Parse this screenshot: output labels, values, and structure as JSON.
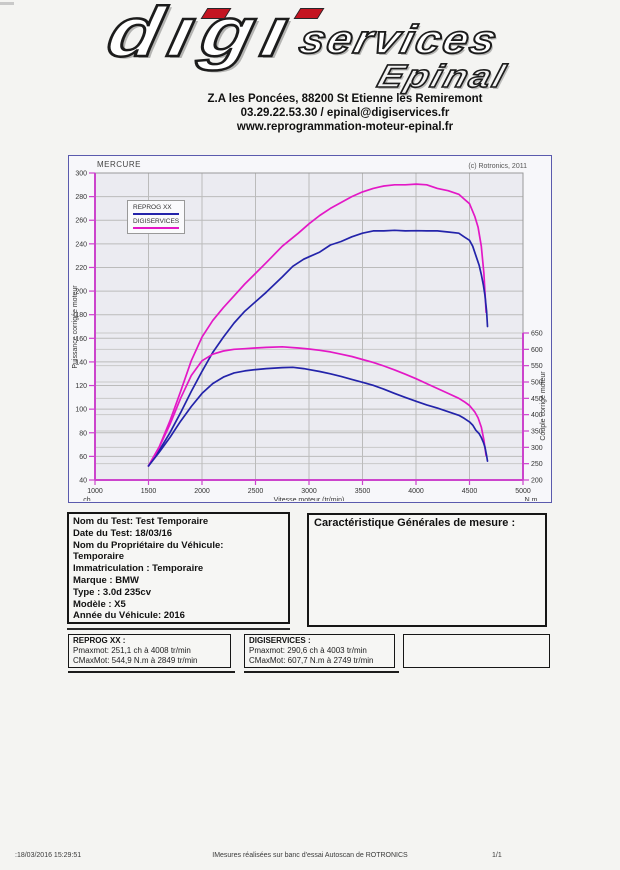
{
  "header": {
    "logo": {
      "word1": "digi",
      "word2": "services",
      "word3": "Epinal"
    },
    "address_lines": [
      "Z.A les Poncées, 88200 St Etienne les Remiremont",
      "03.29.22.53.30 / epinal@digiservices.fr",
      "www.reprogrammation-moteur-epinal.fr"
    ]
  },
  "chart_data": {
    "type": "line",
    "title": "MERCURE",
    "copyright": "(c) Rotronics, 2011",
    "xlabel": "Vitesse moteur (tr/min)",
    "x_corner_left_unit": "ch",
    "x_corner_right_unit": "N.m",
    "ylabel_left": "Puissance corrigée moteur",
    "ylabel_right": "Couple corrigé moteur",
    "xlim": [
      1000,
      5000
    ],
    "ylim_left": [
      40,
      300
    ],
    "ylim_right": [
      200,
      650
    ],
    "x_ticks": [
      1000,
      1500,
      2000,
      2500,
      3000,
      3500,
      4000,
      4500,
      5000
    ],
    "left_ticks": [
      40,
      60,
      80,
      100,
      120,
      140,
      160,
      180,
      200,
      220,
      240,
      260,
      280,
      300
    ],
    "right_ticks": [
      200,
      250,
      300,
      350,
      400,
      450,
      500,
      550,
      600,
      650
    ],
    "grid": true,
    "legend_position": "upper-left",
    "legend": [
      {
        "label": "REPROG XX",
        "color": "#2323aa"
      },
      {
        "label": "DIGISERVICES",
        "color": "#e318c6"
      }
    ],
    "colors": {
      "axis": "#cc44cc",
      "grid": "#bbbbbb",
      "grid_right": "#c9c9c9",
      "plot_bg": "#ebebf1",
      "curve_blue": "#2323aa",
      "curve_magenta": "#e318c6"
    },
    "series": [
      {
        "name": "DIGISERVICES puissance (ch)",
        "color": "#e318c6",
        "axis": "left",
        "points": [
          [
            1500,
            52
          ],
          [
            1600,
            68
          ],
          [
            1700,
            90
          ],
          [
            1800,
            115
          ],
          [
            1900,
            141
          ],
          [
            2000,
            161
          ],
          [
            2100,
            175
          ],
          [
            2200,
            186
          ],
          [
            2300,
            196
          ],
          [
            2400,
            206
          ],
          [
            2500,
            215
          ],
          [
            2600,
            224
          ],
          [
            2750,
            238
          ],
          [
            2900,
            249
          ],
          [
            3000,
            257
          ],
          [
            3100,
            264
          ],
          [
            3200,
            270
          ],
          [
            3300,
            275
          ],
          [
            3400,
            280
          ],
          [
            3500,
            284
          ],
          [
            3600,
            287
          ],
          [
            3700,
            289
          ],
          [
            3800,
            290
          ],
          [
            3900,
            290
          ],
          [
            4003,
            290.6
          ],
          [
            4100,
            290
          ],
          [
            4200,
            287
          ],
          [
            4300,
            285
          ],
          [
            4400,
            282
          ],
          [
            4450,
            278
          ],
          [
            4500,
            274
          ],
          [
            4550,
            263
          ],
          [
            4580,
            254
          ],
          [
            4610,
            238
          ],
          [
            4635,
            215
          ],
          [
            4655,
            182
          ]
        ]
      },
      {
        "name": "REPROG XX puissance (ch)",
        "color": "#2323aa",
        "axis": "left",
        "points": [
          [
            1500,
            52
          ],
          [
            1600,
            65
          ],
          [
            1700,
            80
          ],
          [
            1800,
            97
          ],
          [
            1900,
            115
          ],
          [
            2000,
            132
          ],
          [
            2100,
            148
          ],
          [
            2200,
            161
          ],
          [
            2300,
            173
          ],
          [
            2400,
            183
          ],
          [
            2500,
            191
          ],
          [
            2600,
            199
          ],
          [
            2750,
            212
          ],
          [
            2849,
            221
          ],
          [
            2950,
            227
          ],
          [
            3000,
            229
          ],
          [
            3100,
            233
          ],
          [
            3200,
            239
          ],
          [
            3300,
            242
          ],
          [
            3400,
            246
          ],
          [
            3500,
            249
          ],
          [
            3600,
            251
          ],
          [
            3700,
            251
          ],
          [
            3800,
            251.5
          ],
          [
            3900,
            251
          ],
          [
            4008,
            251.1
          ],
          [
            4100,
            251
          ],
          [
            4200,
            251
          ],
          [
            4300,
            250
          ],
          [
            4400,
            249
          ],
          [
            4450,
            246
          ],
          [
            4500,
            243
          ],
          [
            4530,
            238
          ],
          [
            4560,
            230
          ],
          [
            4590,
            222
          ],
          [
            4610,
            214
          ],
          [
            4630,
            205
          ],
          [
            4645,
            196
          ],
          [
            4660,
            183
          ],
          [
            4668,
            170
          ]
        ]
      },
      {
        "name": "DIGISERVICES couple (N.m)",
        "color": "#e318c6",
        "axis": "right",
        "points": [
          [
            1500,
            243
          ],
          [
            1600,
            300
          ],
          [
            1700,
            370
          ],
          [
            1800,
            450
          ],
          [
            1900,
            520
          ],
          [
            2000,
            565
          ],
          [
            2100,
            585
          ],
          [
            2200,
            595
          ],
          [
            2300,
            600
          ],
          [
            2400,
            602
          ],
          [
            2500,
            604
          ],
          [
            2600,
            606
          ],
          [
            2750,
            607.7
          ],
          [
            2900,
            604
          ],
          [
            3000,
            601
          ],
          [
            3100,
            597
          ],
          [
            3200,
            592
          ],
          [
            3300,
            585
          ],
          [
            3400,
            578
          ],
          [
            3500,
            569
          ],
          [
            3600,
            560
          ],
          [
            3700,
            549
          ],
          [
            3800,
            537
          ],
          [
            3900,
            524
          ],
          [
            4000,
            510
          ],
          [
            4100,
            495
          ],
          [
            4200,
            480
          ],
          [
            4300,
            465
          ],
          [
            4400,
            450
          ],
          [
            4450,
            440
          ],
          [
            4500,
            428
          ],
          [
            4550,
            408
          ],
          [
            4580,
            390
          ],
          [
            4610,
            362
          ],
          [
            4635,
            322
          ],
          [
            4655,
            274
          ]
        ]
      },
      {
        "name": "REPROG XX couple (N.m)",
        "color": "#2323aa",
        "axis": "right",
        "points": [
          [
            1500,
            243
          ],
          [
            1600,
            285
          ],
          [
            1700,
            330
          ],
          [
            1800,
            380
          ],
          [
            1900,
            425
          ],
          [
            2000,
            465
          ],
          [
            2100,
            495
          ],
          [
            2200,
            515
          ],
          [
            2300,
            528
          ],
          [
            2400,
            534
          ],
          [
            2500,
            538
          ],
          [
            2600,
            541
          ],
          [
            2750,
            544
          ],
          [
            2849,
            544.9
          ],
          [
            2950,
            541
          ],
          [
            3000,
            538
          ],
          [
            3100,
            532
          ],
          [
            3200,
            525
          ],
          [
            3300,
            517
          ],
          [
            3400,
            508
          ],
          [
            3500,
            499
          ],
          [
            3600,
            490
          ],
          [
            3700,
            478
          ],
          [
            3800,
            465
          ],
          [
            3900,
            453
          ],
          [
            4008,
            440
          ],
          [
            4100,
            430
          ],
          [
            4200,
            420
          ],
          [
            4300,
            409
          ],
          [
            4400,
            398
          ],
          [
            4450,
            389
          ],
          [
            4500,
            378
          ],
          [
            4530,
            368
          ],
          [
            4560,
            352
          ],
          [
            4590,
            342
          ],
          [
            4610,
            330
          ],
          [
            4630,
            315
          ],
          [
            4645,
            300
          ],
          [
            4660,
            275
          ],
          [
            4668,
            258
          ]
        ]
      }
    ]
  },
  "test_info": {
    "lines": [
      "Nom du Test: Test Temporaire",
      "Date du Test: 18/03/16",
      "Nom du Propriétaire du Véhicule:",
      "Temporaire",
      "Immatriculation  : Temporaire",
      "Marque  : BMW",
      "Type  : 3.0d 235cv",
      "Modèle  : X5",
      "Année du Véhicule: 2016"
    ]
  },
  "measure_box": {
    "title": "Caractéristique Générales de mesure :"
  },
  "results": [
    {
      "title": "REPROG XX :",
      "lines": [
        "Pmaxmot: 251,1 ch à 4008 tr/min",
        "CMaxMot: 544,9 N.m à 2849 tr/min"
      ]
    },
    {
      "title": "DIGISERVICES :",
      "lines": [
        "Pmaxmot: 290,6 ch à 4003 tr/min",
        "CMaxMot: 607,7 N.m à 2749 tr/min"
      ]
    }
  ],
  "footer": {
    "datetime": ":18/03/2016 15:29:51",
    "center": "IMesures réalisées sur banc d'essai Autoscan de ROTRONICS",
    "page": "1/1"
  }
}
